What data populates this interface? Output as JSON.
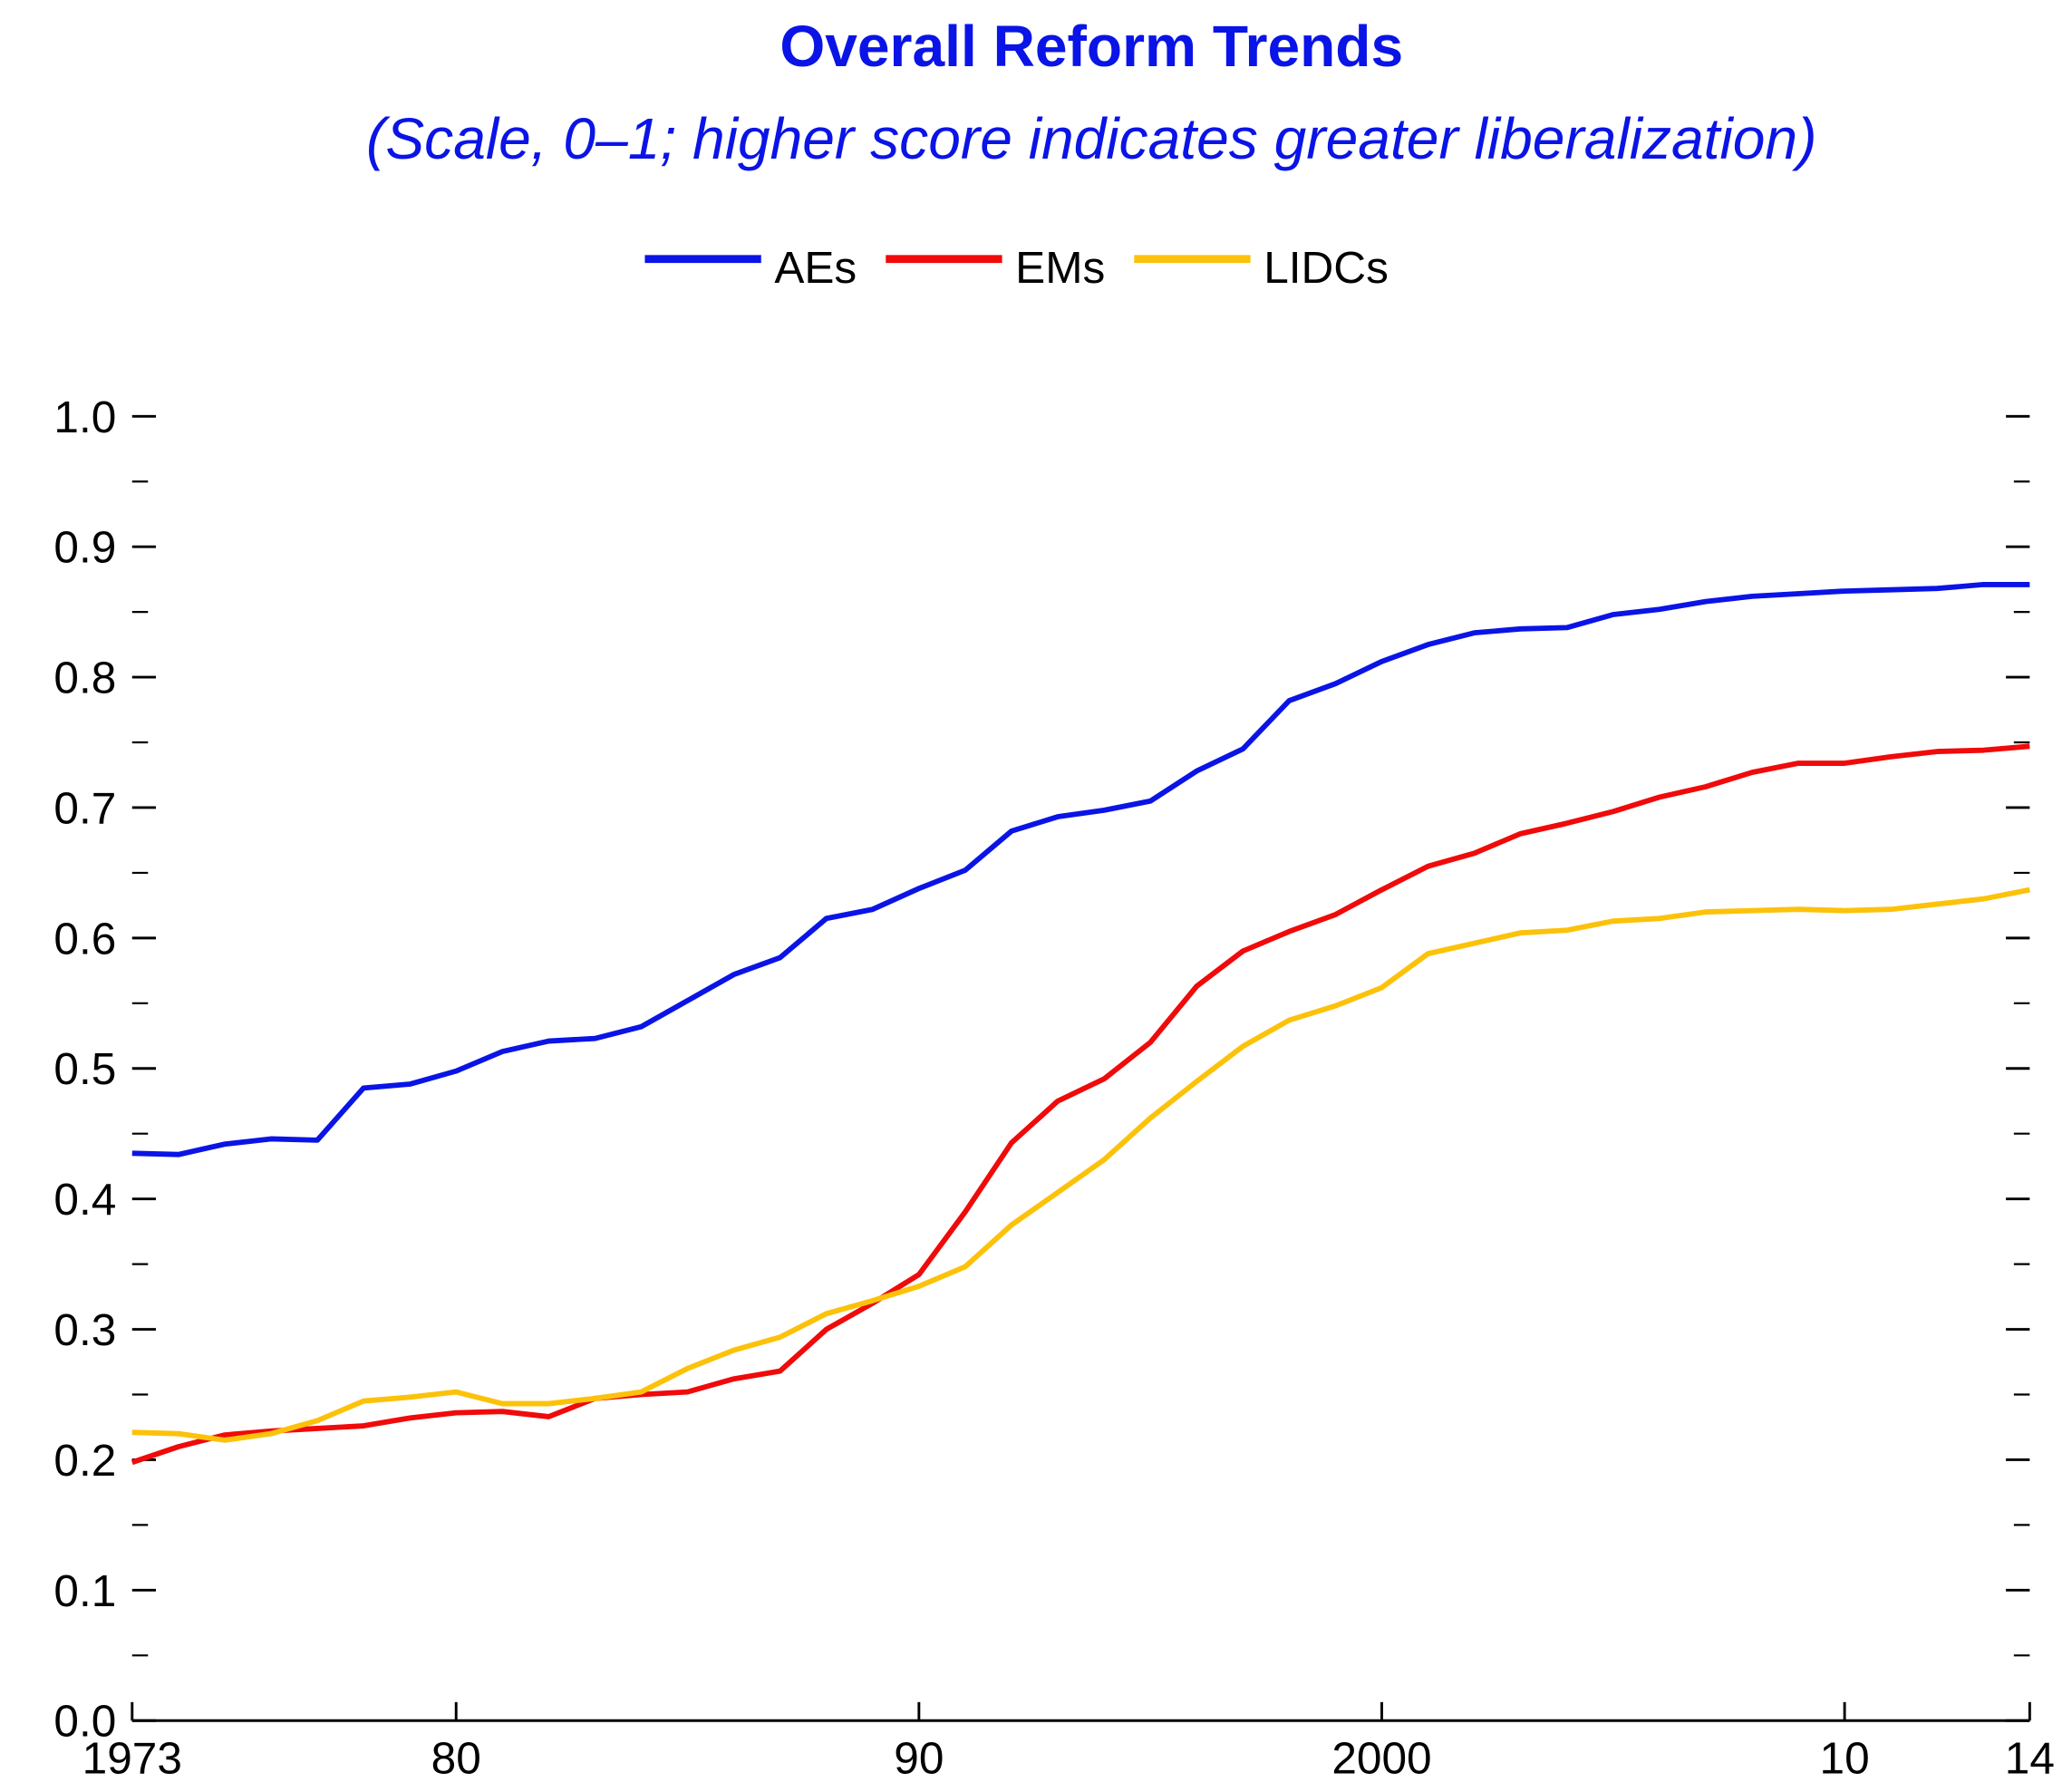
{
  "chart_data": {
    "type": "line",
    "title": "Overall Reform Trends",
    "subtitle": "(Scale, 0–1; higher score indicates greater liberalization)",
    "x": [
      1973,
      1974,
      1975,
      1976,
      1977,
      1978,
      1979,
      1980,
      1981,
      1982,
      1983,
      1984,
      1985,
      1986,
      1987,
      1988,
      1989,
      1990,
      1991,
      1992,
      1993,
      1994,
      1995,
      1996,
      1997,
      1998,
      1999,
      2000,
      2001,
      2002,
      2003,
      2004,
      2005,
      2006,
      2007,
      2008,
      2009,
      2010,
      2011,
      2012,
      2013,
      2014
    ],
    "series": [
      {
        "name": "AEs",
        "color": "#0a14e6",
        "values": [
          0.435,
          0.434,
          0.442,
          0.446,
          0.445,
          0.485,
          0.488,
          0.498,
          0.513,
          0.521,
          0.523,
          0.532,
          0.552,
          0.572,
          0.585,
          0.615,
          0.622,
          0.638,
          0.652,
          0.682,
          0.693,
          0.698,
          0.705,
          0.728,
          0.745,
          0.782,
          0.795,
          0.812,
          0.825,
          0.834,
          0.837,
          0.838,
          0.848,
          0.852,
          0.858,
          0.862,
          0.864,
          0.866,
          0.867,
          0.868,
          0.871,
          0.871
        ]
      },
      {
        "name": "EMs",
        "color": "#f00a0a",
        "values": [
          0.198,
          0.21,
          0.219,
          0.222,
          0.224,
          0.226,
          0.232,
          0.236,
          0.237,
          0.233,
          0.247,
          0.25,
          0.252,
          0.262,
          0.268,
          0.3,
          0.32,
          0.342,
          0.39,
          0.443,
          0.475,
          0.492,
          0.52,
          0.563,
          0.59,
          0.605,
          0.618,
          0.637,
          0.655,
          0.665,
          0.68,
          0.688,
          0.697,
          0.708,
          0.716,
          0.727,
          0.734,
          0.734,
          0.739,
          0.743,
          0.744,
          0.747
        ]
      },
      {
        "name": "LIDCs",
        "color": "#fcc20a",
        "values": [
          0.221,
          0.22,
          0.215,
          0.22,
          0.23,
          0.245,
          0.248,
          0.252,
          0.243,
          0.243,
          0.247,
          0.252,
          0.27,
          0.284,
          0.294,
          0.312,
          0.322,
          0.333,
          0.348,
          0.38,
          0.405,
          0.43,
          0.462,
          0.49,
          0.517,
          0.537,
          0.548,
          0.562,
          0.588,
          0.596,
          0.604,
          0.606,
          0.613,
          0.615,
          0.62,
          0.621,
          0.622,
          0.621,
          0.622,
          0.626,
          0.63,
          0.637
        ]
      }
    ],
    "xlim": [
      1973,
      2014
    ],
    "xticks": [
      1973,
      {
        "value": 1980,
        "label": "80"
      },
      {
        "value": 1990,
        "label": "90"
      },
      2000,
      {
        "value": 2010,
        "label": "10"
      },
      {
        "value": 2014,
        "label": "14"
      }
    ],
    "ylim": [
      0,
      1
    ],
    "yticks": [
      {
        "value": 0,
        "label": "0.0"
      },
      0.1,
      0.2,
      0.3,
      0.4,
      0.5,
      0.6,
      0.7,
      0.8,
      0.9,
      {
        "value": 1,
        "label": "1.0"
      }
    ],
    "yminorticks": [
      0.05,
      0.15,
      0.25,
      0.35,
      0.45,
      0.55,
      0.65,
      0.75,
      0.85,
      0.95
    ],
    "legend": "top"
  }
}
